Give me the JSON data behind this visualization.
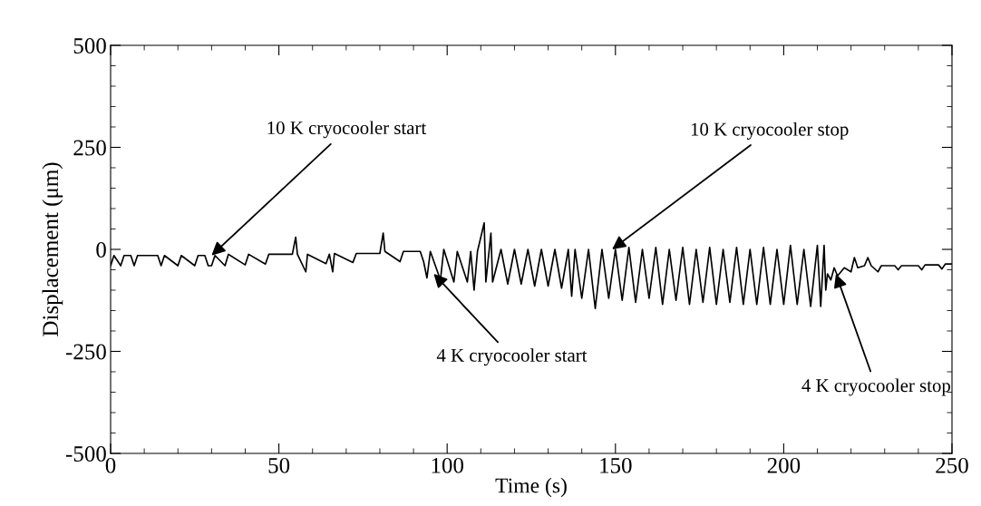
{
  "chart_data": {
    "type": "line",
    "xlabel": "Time (s)",
    "ylabel": "Displacement (μm)",
    "xlim": [
      0,
      250
    ],
    "xticks": [
      0,
      50,
      100,
      150,
      200,
      250
    ],
    "ylim": [
      -500,
      500
    ],
    "yticks": [
      -500,
      -250,
      0,
      250,
      500
    ],
    "grid": false,
    "marker": "none",
    "line_style": "solid",
    "annotations": [
      {
        "text": "10 K cryocooler start",
        "x": 30,
        "y": -15
      },
      {
        "text": "10 K cryocooler stop",
        "x": 149,
        "y": 0
      },
      {
        "text": "4 K cryocooler start",
        "x": 96,
        "y": -60
      },
      {
        "text": "4 K cryocooler stop",
        "x": 215.5,
        "y": -60
      }
    ],
    "series": [
      {
        "color": "#000000",
        "x": [
          0,
          1,
          3,
          4,
          6,
          7,
          8,
          14,
          15,
          16,
          20,
          21,
          25,
          26,
          28,
          29,
          30,
          31,
          34,
          35,
          40,
          41,
          46,
          47,
          54,
          55,
          55.5,
          58,
          58.5,
          64,
          65,
          66,
          66.5,
          72,
          73,
          80,
          81,
          81.5,
          86,
          87,
          92,
          93,
          94,
          95,
          98,
          99,
          102,
          103,
          106,
          107,
          108,
          109,
          111,
          111.5,
          113,
          113.5,
          116,
          118,
          120,
          122,
          124,
          126,
          128,
          130,
          132,
          134,
          136,
          137,
          138,
          140,
          142,
          144,
          146,
          148,
          150,
          152,
          154,
          156,
          158,
          160,
          162,
          164,
          166,
          168,
          170,
          172,
          174,
          176,
          178,
          180,
          182,
          184,
          186,
          188,
          190,
          192,
          194,
          196,
          198,
          200,
          202,
          204,
          206,
          208,
          210,
          211,
          212,
          212.5,
          213,
          214,
          215,
          216,
          218,
          220,
          221,
          222,
          224,
          225,
          226,
          228,
          229,
          233,
          234,
          235,
          240,
          241,
          242,
          246,
          247,
          248,
          250
        ],
        "values": [
          -40,
          -15,
          -40,
          -15,
          -15,
          -40,
          -15,
          -15,
          -40,
          -15,
          -40,
          -15,
          -40,
          -15,
          -15,
          -40,
          -40,
          -15,
          -40,
          -12,
          -38,
          -12,
          -36,
          -12,
          -12,
          30,
          -12,
          -55,
          -12,
          -35,
          -12,
          -55,
          -10,
          -32,
          -10,
          -10,
          40,
          -5,
          -30,
          -5,
          -5,
          -30,
          -70,
          -5,
          -75,
          0,
          -80,
          -5,
          -80,
          -5,
          -100,
          -5,
          65,
          -80,
          40,
          -80,
          0,
          -85,
          0,
          -85,
          0,
          -90,
          0,
          -90,
          0,
          -95,
          0,
          -115,
          0,
          -120,
          0,
          -145,
          0,
          -120,
          0,
          -125,
          5,
          -130,
          0,
          -120,
          5,
          -135,
          0,
          -125,
          5,
          -135,
          0,
          -130,
          5,
          -135,
          0,
          -130,
          5,
          -135,
          0,
          -135,
          5,
          -135,
          0,
          -135,
          10,
          -135,
          0,
          -140,
          10,
          -140,
          10,
          -100,
          -60,
          -75,
          -45,
          -65,
          -45,
          -55,
          -20,
          -45,
          -40,
          -20,
          -40,
          -55,
          -40,
          -40,
          -50,
          -40,
          -40,
          -50,
          -38,
          -38,
          -48,
          -36,
          -36
        ]
      }
    ]
  }
}
